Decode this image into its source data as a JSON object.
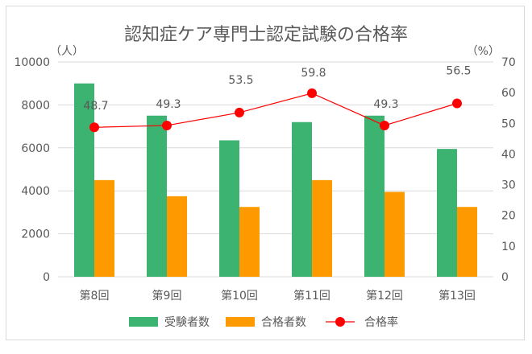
{
  "chart_data": {
    "type": "bar+line",
    "title": "認知症ケア専門士認定試験の合格率",
    "categories": [
      "第8回",
      "第9回",
      "第10回",
      "第11回",
      "第12回",
      "第13回"
    ],
    "y_left": {
      "unit_label": "（人）",
      "range": [
        0,
        10000
      ],
      "ticks": [
        "0",
        "2000",
        "4000",
        "6000",
        "8000",
        "10000"
      ]
    },
    "y_right": {
      "unit_label": "（%）",
      "range": [
        0,
        70
      ],
      "ticks": [
        "0",
        "10",
        "20",
        "30",
        "40",
        "50",
        "60",
        "70"
      ]
    },
    "grid": true,
    "legend_position": "bottom",
    "series": [
      {
        "name": "受験者数",
        "type": "bar",
        "axis": "left",
        "color": "#3cb371",
        "values": [
          9000,
          7500,
          6350,
          7200,
          7500,
          5950
        ]
      },
      {
        "name": "合格者数",
        "type": "bar",
        "axis": "left",
        "color": "#ff9900",
        "values": [
          4500,
          3750,
          3250,
          4500,
          3950,
          3250
        ]
      },
      {
        "name": "合格率",
        "type": "line",
        "axis": "right",
        "color": "#ff0000",
        "values": [
          48.7,
          49.3,
          53.5,
          59.8,
          49.3,
          56.5
        ],
        "labels": [
          "48.7",
          "49.3",
          "53.5",
          "59.8",
          "49.3",
          "56.5"
        ]
      }
    ]
  }
}
